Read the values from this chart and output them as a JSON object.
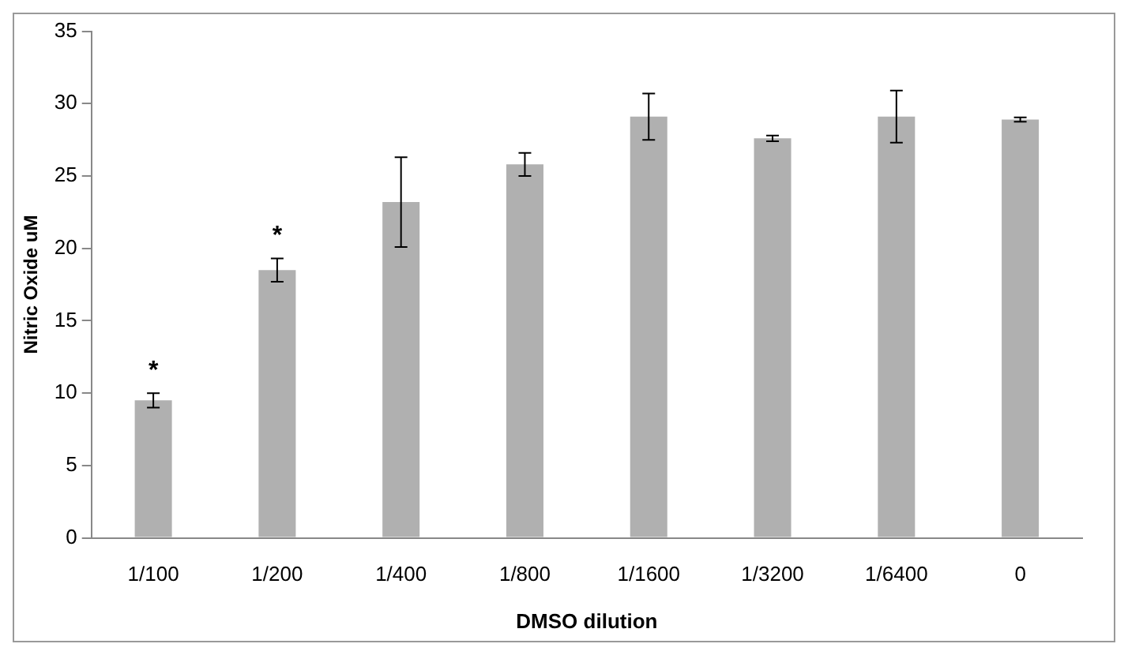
{
  "chart_data": {
    "type": "bar",
    "xlabel": "DMSO dilution",
    "ylabel": "Nitric Oxide uM",
    "categories": [
      "1/100",
      "1/200",
      "1/400",
      "1/800",
      "1/1600",
      "1/3200",
      "1/6400",
      "0"
    ],
    "values": [
      9.5,
      18.5,
      23.2,
      25.8,
      29.1,
      27.6,
      29.1,
      28.9
    ],
    "errors": [
      0.5,
      0.8,
      3.1,
      0.8,
      1.6,
      0.2,
      1.8,
      0.15
    ],
    "color": "#b0b0b0",
    "ylim": [
      0,
      35
    ],
    "yticks": [
      0,
      5,
      10,
      15,
      20,
      25,
      30,
      35
    ],
    "grid": false,
    "annotations": [
      "*",
      "*"
    ]
  }
}
